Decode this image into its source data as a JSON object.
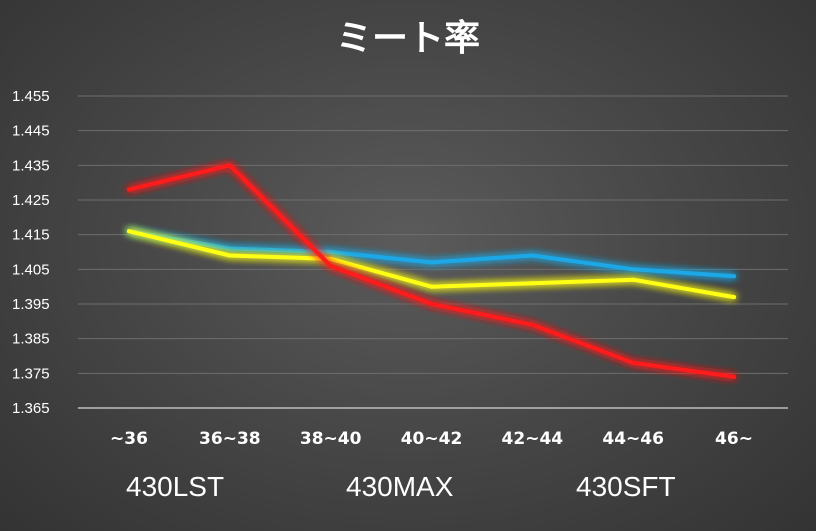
{
  "chart_data": {
    "type": "line",
    "title": "ミート率",
    "xlabel": "",
    "ylabel": "",
    "categories": [
      "~36",
      "36~38",
      "38~40",
      "40~42",
      "42~44",
      "44~46",
      "46~"
    ],
    "ylim": [
      1.365,
      1.455
    ],
    "yticks": [
      "1.455",
      "1.445",
      "1.435",
      "1.425",
      "1.415",
      "1.405",
      "1.395",
      "1.385",
      "1.375",
      "1.365"
    ],
    "grid": true,
    "legend_position": "bottom",
    "series": [
      {
        "name": "430LST",
        "color": "#1fa8e6",
        "values": [
          1.416,
          1.411,
          1.41,
          1.407,
          1.409,
          1.405,
          1.403
        ]
      },
      {
        "name": "430MAX",
        "color": "#ffff14",
        "values": [
          1.416,
          1.409,
          1.408,
          1.4,
          1.401,
          1.402,
          1.397
        ]
      },
      {
        "name": "430SFT",
        "color": "#ff1a1a",
        "values": [
          1.428,
          1.435,
          1.406,
          1.395,
          1.389,
          1.378,
          1.374
        ]
      }
    ]
  }
}
